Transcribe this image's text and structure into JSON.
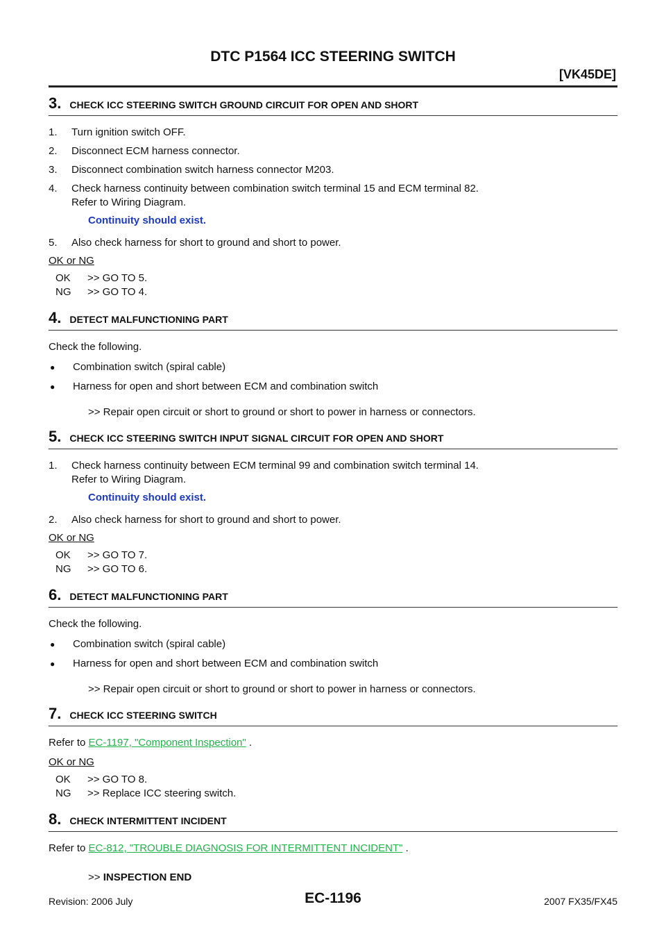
{
  "header": {
    "title": "DTC P1564 ICC STEERING SWITCH",
    "subtitle": "[VK45DE]"
  },
  "steps": {
    "s3": {
      "num": "3.",
      "title": "CHECK ICC STEERING SWITCH GROUND CIRCUIT FOR OPEN AND SHORT",
      "items": [
        {
          "n": "1.",
          "t": "Turn ignition switch OFF."
        },
        {
          "n": "2.",
          "t": "Disconnect ECM harness connector."
        },
        {
          "n": "3.",
          "t": "Disconnect combination switch harness connector M203."
        },
        {
          "n": "4.",
          "t": "Check harness continuity between combination switch terminal 15 and ECM terminal 82.",
          "t2": "Refer to Wiring Diagram."
        },
        {
          "n": "5.",
          "t": "Also check harness for short to ground and short to power."
        }
      ],
      "spec": "Continuity should exist.",
      "okng": "OK or NG",
      "results": [
        {
          "label": "OK",
          "text": ">> GO TO 5."
        },
        {
          "label": "NG",
          "text": ">> GO TO 4."
        }
      ]
    },
    "s4": {
      "num": "4.",
      "title": "DETECT MALFUNCTIONING PART",
      "intro": "Check the following.",
      "bullets": [
        "Combination switch (spiral cable)",
        "Harness for open and short between ECM and combination switch"
      ],
      "action": ">> Repair open circuit or short to ground or short to power in harness or connectors."
    },
    "s5": {
      "num": "5.",
      "title": "CHECK ICC STEERING SWITCH INPUT SIGNAL CIRCUIT FOR OPEN AND SHORT",
      "items": [
        {
          "n": "1.",
          "t": "Check harness continuity between ECM terminal 99 and combination switch terminal 14.",
          "t2": "Refer to Wiring Diagram."
        },
        {
          "n": "2.",
          "t": "Also check harness for short to ground and short to power."
        }
      ],
      "spec": "Continuity should exist.",
      "okng": "OK or NG",
      "results": [
        {
          "label": "OK",
          "text": ">> GO TO 7."
        },
        {
          "label": "NG",
          "text": ">> GO TO 6."
        }
      ]
    },
    "s6": {
      "num": "6.",
      "title": "DETECT MALFUNCTIONING PART",
      "intro": "Check the following.",
      "bullets": [
        "Combination switch (spiral cable)",
        "Harness for open and short between ECM and combination switch"
      ],
      "action": ">> Repair open circuit or short to ground or short to power in harness or connectors."
    },
    "s7": {
      "num": "7.",
      "title": "CHECK ICC STEERING SWITCH",
      "refer_prefix": "Refer to ",
      "refer_link": "EC-1197, \"Component Inspection\"",
      "refer_suffix": " .",
      "okng": "OK or NG",
      "results": [
        {
          "label": "OK",
          "text": ">> GO TO 8."
        },
        {
          "label": "NG",
          "text": ">> Replace ICC steering switch."
        }
      ]
    },
    "s8": {
      "num": "8.",
      "title": "CHECK INTERMITTENT INCIDENT",
      "refer_prefix": "Refer to ",
      "refer_link": "EC-812, \"TROUBLE DIAGNOSIS FOR INTERMITTENT INCIDENT\"",
      "refer_suffix": " .",
      "action_prefix": ">> ",
      "action_strong": "INSPECTION END"
    }
  },
  "footer": {
    "revision": "Revision: 2006 July",
    "page": "EC-1196",
    "model": "2007 FX35/FX45"
  }
}
